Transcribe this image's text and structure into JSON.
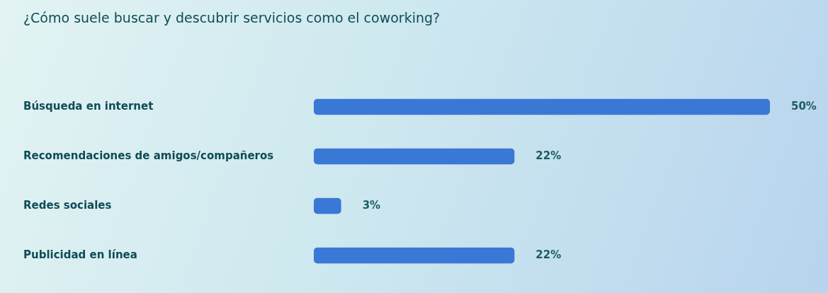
{
  "chart_data": {
    "type": "bar",
    "orientation": "horizontal",
    "title": "¿Cómo suele buscar y descubrir servicios como el coworking?",
    "categories": [
      "Búsqueda en internet",
      "Recomendaciones de amigos/compañeros",
      "Redes sociales",
      "Publicidad en línea"
    ],
    "values": [
      50,
      22,
      3,
      22
    ],
    "color": "#3a78d6",
    "value_labels": [
      "50%",
      "22%",
      "3%",
      "22%"
    ],
    "tick_labels": "y",
    "legend": false
  }
}
